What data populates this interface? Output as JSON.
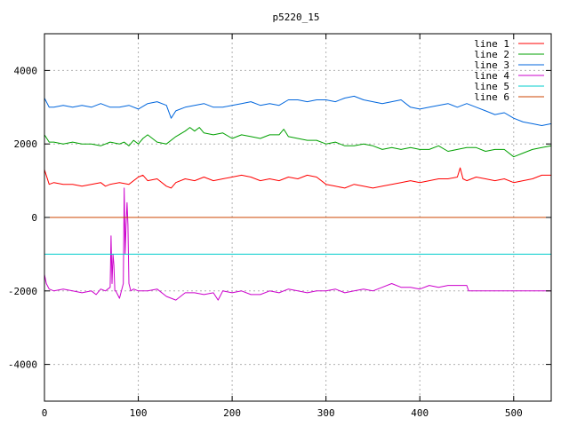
{
  "chart_data": {
    "type": "line",
    "title": "p5220_15",
    "xlabel": "",
    "ylabel": "",
    "xlim": [
      0,
      540
    ],
    "ylim": [
      -5000,
      5000
    ],
    "x_ticks": [
      0,
      100,
      200,
      300,
      400,
      500
    ],
    "y_ticks": [
      -4000,
      -2000,
      0,
      2000,
      4000
    ],
    "grid": true,
    "legend_position": "top-right",
    "series": [
      {
        "name": "line 1",
        "color": "#ff0000",
        "x": [
          0,
          5,
          10,
          20,
          30,
          40,
          50,
          60,
          65,
          70,
          80,
          90,
          100,
          105,
          110,
          120,
          130,
          135,
          140,
          150,
          160,
          170,
          180,
          190,
          200,
          210,
          220,
          230,
          240,
          250,
          260,
          270,
          280,
          290,
          300,
          310,
          320,
          330,
          340,
          350,
          360,
          370,
          380,
          390,
          400,
          410,
          420,
          430,
          440,
          443,
          446,
          450,
          460,
          470,
          480,
          490,
          500,
          510,
          520,
          530,
          540
        ],
        "y": [
          1300,
          900,
          950,
          900,
          900,
          850,
          900,
          950,
          850,
          900,
          950,
          900,
          1100,
          1150,
          1000,
          1050,
          850,
          800,
          950,
          1050,
          1000,
          1100,
          1000,
          1050,
          1100,
          1150,
          1100,
          1000,
          1050,
          1000,
          1100,
          1050,
          1150,
          1100,
          900,
          850,
          800,
          900,
          850,
          800,
          850,
          900,
          950,
          1000,
          950,
          1000,
          1050,
          1050,
          1100,
          1350,
          1050,
          1000,
          1100,
          1050,
          1000,
          1050,
          950,
          1000,
          1050,
          1150,
          1150
        ]
      },
      {
        "name": "line 2",
        "color": "#00a000",
        "x": [
          0,
          5,
          10,
          20,
          30,
          40,
          50,
          60,
          70,
          80,
          85,
          90,
          95,
          100,
          105,
          110,
          120,
          130,
          140,
          150,
          155,
          160,
          165,
          170,
          180,
          190,
          200,
          210,
          220,
          230,
          240,
          250,
          255,
          260,
          270,
          280,
          290,
          300,
          310,
          320,
          330,
          340,
          350,
          360,
          370,
          380,
          390,
          400,
          410,
          420,
          430,
          440,
          450,
          460,
          470,
          480,
          490,
          500,
          510,
          520,
          530,
          540
        ],
        "y": [
          2250,
          2050,
          2050,
          2000,
          2050,
          2000,
          2000,
          1950,
          2050,
          2000,
          2050,
          1950,
          2100,
          2000,
          2150,
          2250,
          2050,
          2000,
          2200,
          2350,
          2450,
          2350,
          2450,
          2300,
          2250,
          2300,
          2150,
          2250,
          2200,
          2150,
          2250,
          2250,
          2400,
          2200,
          2150,
          2100,
          2100,
          2000,
          2050,
          1950,
          1950,
          2000,
          1950,
          1850,
          1900,
          1850,
          1900,
          1850,
          1850,
          1950,
          1800,
          1850,
          1900,
          1900,
          1800,
          1850,
          1850,
          1650,
          1750,
          1850,
          1900,
          1950
        ]
      },
      {
        "name": "line 3",
        "color": "#0066dd",
        "x": [
          0,
          5,
          10,
          20,
          30,
          40,
          50,
          60,
          70,
          80,
          90,
          100,
          110,
          120,
          130,
          135,
          140,
          150,
          160,
          170,
          180,
          190,
          200,
          210,
          220,
          230,
          240,
          250,
          260,
          270,
          280,
          290,
          300,
          310,
          320,
          330,
          340,
          350,
          360,
          370,
          380,
          390,
          400,
          410,
          420,
          430,
          440,
          450,
          460,
          470,
          480,
          490,
          500,
          510,
          520,
          530,
          540
        ],
        "y": [
          3250,
          3000,
          3000,
          3050,
          3000,
          3050,
          3000,
          3100,
          3000,
          3000,
          3050,
          2950,
          3100,
          3150,
          3050,
          2700,
          2900,
          3000,
          3050,
          3100,
          3000,
          3000,
          3050,
          3100,
          3150,
          3050,
          3100,
          3050,
          3200,
          3200,
          3150,
          3200,
          3200,
          3150,
          3250,
          3300,
          3200,
          3150,
          3100,
          3150,
          3200,
          3000,
          2950,
          3000,
          3050,
          3100,
          3000,
          3100,
          3000,
          2900,
          2800,
          2850,
          2700,
          2600,
          2550,
          2500,
          2550
        ]
      },
      {
        "name": "line 4",
        "color": "#cc00cc",
        "x": [
          0,
          2,
          5,
          10,
          20,
          30,
          40,
          50,
          55,
          60,
          65,
          70,
          71,
          72,
          73,
          74,
          75,
          76,
          78,
          80,
          84,
          85,
          86,
          87,
          88,
          89,
          90,
          91,
          92,
          95,
          100,
          110,
          120,
          130,
          140,
          150,
          160,
          170,
          180,
          185,
          190,
          200,
          210,
          220,
          230,
          240,
          250,
          260,
          270,
          280,
          290,
          300,
          310,
          320,
          330,
          340,
          350,
          360,
          370,
          380,
          390,
          400,
          410,
          420,
          430,
          440,
          450,
          452,
          460,
          480,
          500,
          520,
          540
        ],
        "y": [
          -1550,
          -1800,
          -1950,
          -2000,
          -1950,
          -2000,
          -2050,
          -2000,
          -2100,
          -1950,
          -2000,
          -1900,
          -500,
          -1800,
          -1000,
          -1300,
          -2000,
          -2000,
          -2100,
          -2200,
          -1800,
          800,
          -1000,
          -200,
          400,
          -200,
          -1800,
          -1900,
          -2000,
          -1950,
          -2000,
          -2000,
          -1950,
          -2150,
          -2250,
          -2050,
          -2050,
          -2100,
          -2050,
          -2250,
          -2000,
          -2050,
          -2000,
          -2100,
          -2100,
          -2000,
          -2050,
          -1950,
          -2000,
          -2050,
          -2000,
          -2000,
          -1950,
          -2050,
          -2000,
          -1950,
          -2000,
          -1900,
          -1800,
          -1900,
          -1900,
          -1950,
          -1850,
          -1900,
          -1850,
          -1850,
          -1850,
          -2000,
          -2000,
          -2000,
          -2000,
          -2000,
          -2000
        ]
      },
      {
        "name": "line 5",
        "color": "#00cccc",
        "x": [
          0,
          540
        ],
        "y": [
          -1000,
          -1000
        ]
      },
      {
        "name": "line 6",
        "color": "#cc4400",
        "x": [
          0,
          540
        ],
        "y": [
          0,
          0
        ]
      }
    ]
  }
}
